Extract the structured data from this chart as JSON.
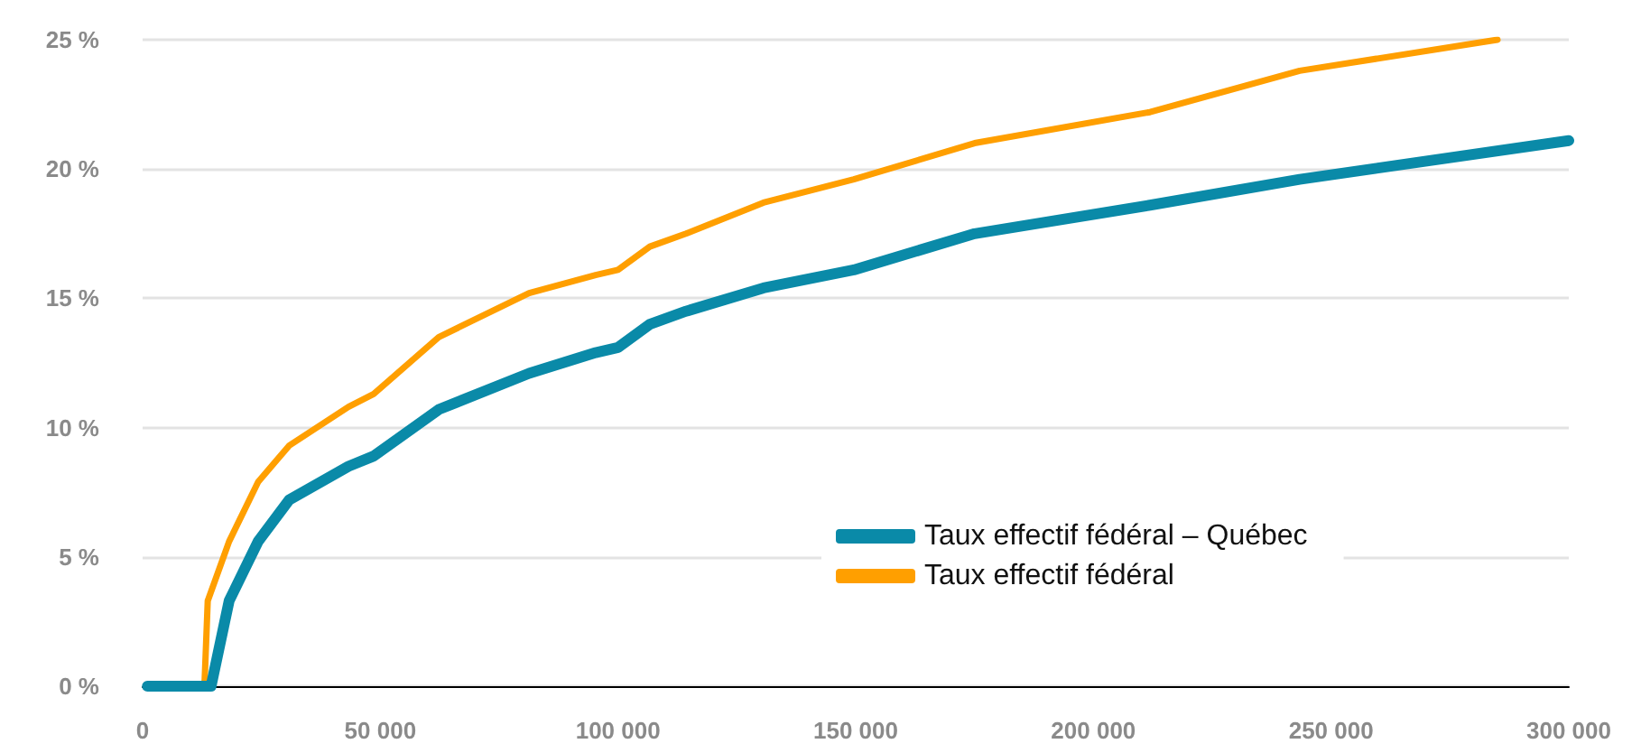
{
  "chart_data": {
    "type": "line",
    "xlim": [
      0,
      300000
    ],
    "ylim": [
      0,
      25
    ],
    "xticks": [
      {
        "value": 0,
        "label": "0"
      },
      {
        "value": 50000,
        "label": "50 000"
      },
      {
        "value": 100000,
        "label": "100 000"
      },
      {
        "value": 150000,
        "label": "150 000"
      },
      {
        "value": 200000,
        "label": "200 000"
      },
      {
        "value": 250000,
        "label": "250 000"
      },
      {
        "value": 300000,
        "label": "300 000"
      }
    ],
    "yticks": [
      {
        "value": 0,
        "label": "0 %"
      },
      {
        "value": 5,
        "label": "5 %"
      },
      {
        "value": 10,
        "label": "10 %"
      },
      {
        "value": 15,
        "label": "15 %"
      },
      {
        "value": 20,
        "label": "20 %"
      },
      {
        "value": 25,
        "label": "25 %"
      }
    ],
    "grid": "y",
    "legend": "bottom right",
    "marker": "none",
    "line_style": "solid",
    "series": [
      {
        "name": "Taux effectif fédéral – Québec",
        "color": "#0a8aa8",
        "x": [
          1000,
          14400,
          18200,
          24300,
          30800,
          43300,
          48600,
          62300,
          81300,
          95300,
          100000,
          106700,
          114300,
          130600,
          149600,
          175000,
          211900,
          243400,
          300000
        ],
        "values": [
          0,
          0,
          3.3,
          5.6,
          7.2,
          8.5,
          8.9,
          10.7,
          12.1,
          12.9,
          13.1,
          14.0,
          14.5,
          15.4,
          16.1,
          17.5,
          18.6,
          19.6,
          21.1
        ]
      },
      {
        "name": "Taux effectif fédéral",
        "color": "#ff9f00",
        "x": [
          1000,
          13000,
          13700,
          18200,
          24300,
          30800,
          43300,
          48600,
          62300,
          81300,
          95300,
          100000,
          106700,
          114300,
          130600,
          149600,
          175000,
          211900,
          243400,
          285000
        ],
        "values": [
          0,
          0,
          3.3,
          5.6,
          7.9,
          9.3,
          10.8,
          11.3,
          13.5,
          15.2,
          15.9,
          16.1,
          17.0,
          17.5,
          18.7,
          19.6,
          21.0,
          22.2,
          23.8,
          25.0
        ]
      }
    ]
  }
}
